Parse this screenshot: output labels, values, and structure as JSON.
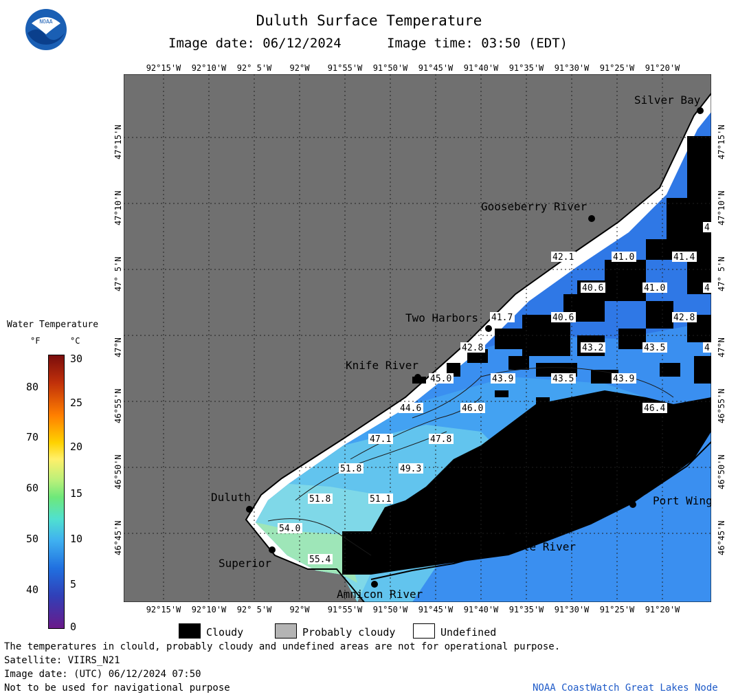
{
  "header": {
    "title": "Duluth Surface Temperature",
    "image_date": "Image date: 06/12/2024",
    "image_time": "Image time: 03:50 (EDT)"
  },
  "logo": {
    "text": "NOAA"
  },
  "map": {
    "lon_labels": [
      "92°15'W",
      "92°10'W",
      "92° 5'W",
      "92°W",
      "91°55'W",
      "91°50'W",
      "91°45'W",
      "91°40'W",
      "91°35'W",
      "91°30'W",
      "91°25'W",
      "91°20'W"
    ],
    "lat_labels": [
      "47°15'N",
      "47°10'N",
      "47° 5'N",
      "47°N",
      "46°55'N",
      "46°50'N",
      "46°45'N"
    ],
    "places": [
      {
        "name": "Silver Bay"
      },
      {
        "name": "Gooseberry River"
      },
      {
        "name": "Two Harbors"
      },
      {
        "name": "Knife River"
      },
      {
        "name": "Duluth"
      },
      {
        "name": "Superior"
      },
      {
        "name": "Amnicon River"
      },
      {
        "name": "Brule River"
      },
      {
        "name": "Port Wing"
      }
    ],
    "temps": [
      "42.1",
      "41.0",
      "41.4",
      "4",
      "40.6",
      "41.0",
      "4",
      "41.7",
      "40.6",
      "42.8",
      "42.8",
      "43.2",
      "43.5",
      "4",
      "45.0",
      "43.9",
      "43.5",
      "43.9",
      "44.6",
      "46.0",
      "46.4",
      "47.1",
      "47.8",
      "51.8",
      "49.3",
      "51.8",
      "51.1",
      "54.0",
      "55.4"
    ]
  },
  "scale": {
    "title": "Water Temperature",
    "unit_f": "°F",
    "unit_c": "°C",
    "f_ticks": [
      "80",
      "70",
      "60",
      "50",
      "40"
    ],
    "c_ticks": [
      "30",
      "25",
      "20",
      "15",
      "10",
      "5",
      "0"
    ]
  },
  "legend": {
    "cloudy": "Cloudy",
    "probably_cloudy": "Probably cloudy",
    "undefined": "Undefined",
    "cloudy_color": "#000000",
    "probably_cloudy_color": "#b4b4b4",
    "undefined_color": "#ffffff"
  },
  "footer": {
    "line1": "The temperatures in clould, probably cloudy and undefined areas are not for operational purpose.",
    "line2": "Satellite: VIIRS_N21",
    "line3": "Image date: (UTC) 06/12/2024  07:50",
    "line4": "Not to be used for navigational purpose",
    "credit": "NOAA CoastWatch Great Lakes Node"
  }
}
